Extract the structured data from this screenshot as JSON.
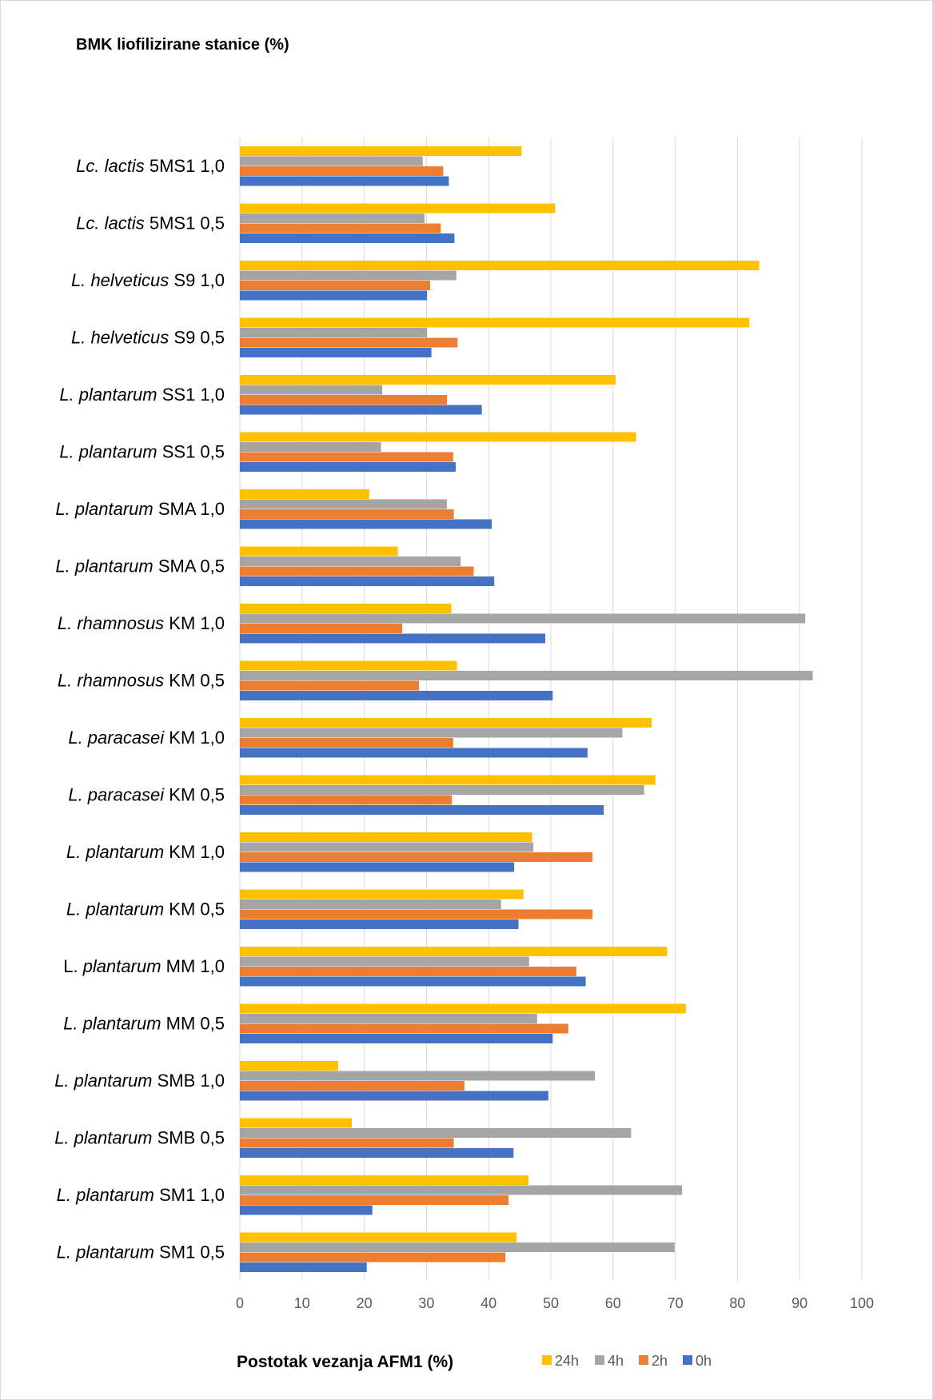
{
  "chart_data": {
    "type": "bar",
    "orientation": "horizontal",
    "title": "BMK liofilizirane stanice (%)",
    "xlabel": "Postotak vezanja AFM1 (%)",
    "ylabel": "",
    "xlim": [
      0,
      100
    ],
    "x_ticks": [
      "0",
      "10",
      "20",
      "30",
      "40",
      "50",
      "60",
      "70",
      "80",
      "90",
      "100"
    ],
    "grid": "vertical",
    "legend_position": "bottom",
    "categories": [
      {
        "italic": "Lc. lactis",
        "rest": " 5MS1 1,0"
      },
      {
        "italic": "Lc. lactis",
        "rest": " 5MS1 0,5"
      },
      {
        "italic": "L. helveticus",
        "rest": " S9 1,0"
      },
      {
        "italic": "L. helveticus",
        "rest": " S9 0,5"
      },
      {
        "italic": "L. plantarum",
        "rest": " SS1 1,0"
      },
      {
        "italic": "L. plantarum",
        "rest": " SS1 0,5"
      },
      {
        "italic": "L. plantarum",
        "rest": " SMA 1,0"
      },
      {
        "italic": "L. plantarum",
        "rest": " SMA 0,5"
      },
      {
        "italic": "L. rhamnosus",
        "rest": " KM 1,0"
      },
      {
        "italic": "L. rhamnosus",
        "rest": " KM 0,5"
      },
      {
        "italic": "L. paracasei",
        "rest": " KM 1,0"
      },
      {
        "italic": "L. paracasei",
        "rest": " KM 0,5"
      },
      {
        "italic": "L. plantarum",
        "rest": " KM 1,0"
      },
      {
        "italic": "L. plantarum",
        "rest": " KM 0,5"
      },
      {
        "plain": "L. ",
        "italic": "plantarum",
        "rest": " MM 1,0"
      },
      {
        "italic": "L. plantarum",
        "rest": " MM 0,5"
      },
      {
        "italic": "L. plantarum",
        "rest": " SMB 1,0"
      },
      {
        "italic": "L. plantarum",
        "rest": " SMB 0,5"
      },
      {
        "italic": "L. plantarum",
        "rest": " SM1 1,0"
      },
      {
        "italic": "L. plantarum",
        "rest": " SM1 0,5"
      }
    ],
    "series": [
      {
        "name": "24h",
        "color": "#FFC000",
        "values": [
          45.3,
          50.7,
          83.5,
          81.9,
          60.4,
          63.7,
          20.8,
          25.4,
          34.0,
          34.9,
          66.2,
          66.8,
          47.0,
          45.6,
          68.7,
          71.7,
          15.8,
          18.0,
          46.4,
          44.5
        ]
      },
      {
        "name": "4h",
        "color": "#A5A5A5",
        "values": [
          29.4,
          29.7,
          34.8,
          30.1,
          22.9,
          22.7,
          33.3,
          35.5,
          90.9,
          92.1,
          61.5,
          65.0,
          47.2,
          42.0,
          46.5,
          47.8,
          57.1,
          62.9,
          71.1,
          69.9
        ]
      },
      {
        "name": "2h",
        "color": "#ED7D31",
        "values": [
          32.7,
          32.3,
          30.6,
          35.0,
          33.3,
          34.3,
          34.4,
          37.6,
          26.1,
          28.8,
          34.3,
          34.1,
          56.7,
          56.7,
          54.1,
          52.8,
          36.1,
          34.4,
          43.2,
          42.7
        ]
      },
      {
        "name": "0h",
        "color": "#4472C4",
        "values": [
          33.6,
          34.5,
          30.1,
          30.8,
          38.9,
          34.7,
          40.5,
          40.9,
          49.1,
          50.3,
          55.9,
          58.5,
          44.1,
          44.8,
          55.6,
          50.3,
          49.6,
          44.0,
          21.3,
          20.4
        ]
      }
    ],
    "legend_order": [
      "24h",
      "4h",
      "2h",
      "0h"
    ]
  }
}
